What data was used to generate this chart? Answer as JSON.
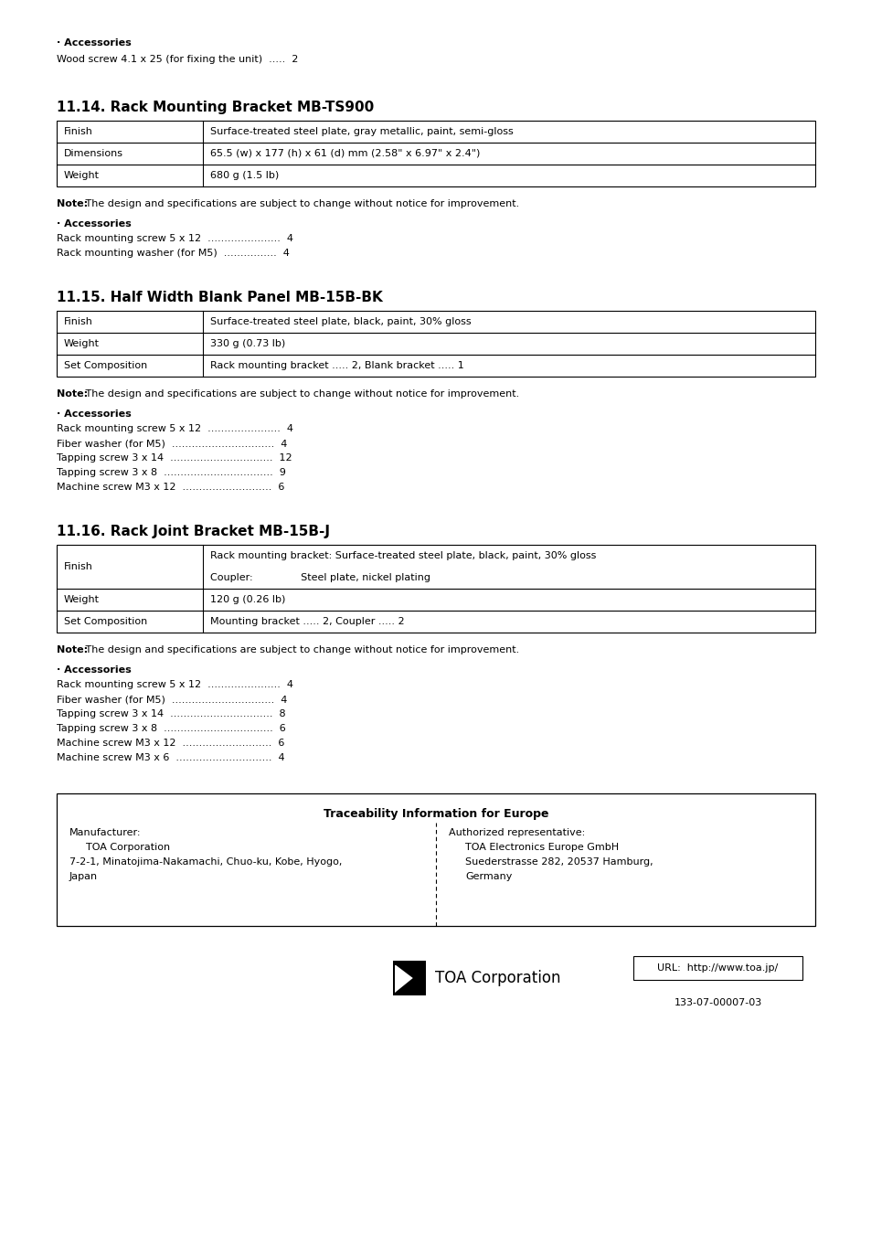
{
  "bg_color": "#ffffff",
  "top_accessories_label": "· Accessories",
  "top_accessories_item": "Wood screw 4.1 x 25 (for fixing the unit)  .....  2",
  "section1_title": "11.14. Rack Mounting Bracket MB-TS900",
  "section1_table": [
    [
      "Finish",
      "Surface-treated steel plate, gray metallic, paint, semi-gloss"
    ],
    [
      "Dimensions",
      "65.5 (w) x 177 (h) x 61 (d) mm (2.58\" x 6.97\" x 2.4\")"
    ],
    [
      "Weight",
      "680 g (1.5 lb)"
    ]
  ],
  "section1_note": "The design and specifications are subject to change without notice for improvement.",
  "section1_accessories_label": "· Accessories",
  "section1_accessories": [
    "Rack mounting screw 5 x 12  ......................  4",
    "Rack mounting washer (for M5)  ................  4"
  ],
  "section2_title": "11.15. Half Width Blank Panel MB-15B-BK",
  "section2_table": [
    [
      "Finish",
      "Surface-treated steel plate, black, paint, 30% gloss"
    ],
    [
      "Weight",
      "330 g (0.73 lb)"
    ],
    [
      "Set Composition",
      "Rack mounting bracket ..... 2, Blank bracket ..... 1"
    ]
  ],
  "section2_note": "The design and specifications are subject to change without notice for improvement.",
  "section2_accessories_label": "· Accessories",
  "section2_accessories": [
    "Rack mounting screw 5 x 12  ......................  4",
    "Fiber washer (for M5)  ...............................  4",
    "Tapping screw 3 x 14  ...............................  12",
    "Tapping screw 3 x 8  .................................  9",
    "Machine screw M3 x 12  ...........................  6"
  ],
  "section3_title": "11.16. Rack Joint Bracket MB-15B-J",
  "section3_table": [
    [
      "Finish",
      "Rack mounting bracket: Surface-treated steel plate, black, paint, 30% gloss\nCoupler:               Steel plate, nickel plating"
    ],
    [
      "Weight",
      "120 g (0.26 lb)"
    ],
    [
      "Set Composition",
      "Mounting bracket ..... 2, Coupler ..... 2"
    ]
  ],
  "section3_note": "The design and specifications are subject to change without notice for improvement.",
  "section3_accessories_label": "· Accessories",
  "section3_accessories": [
    "Rack mounting screw 5 x 12  ......................  4",
    "Fiber washer (for M5)  ...............................  4",
    "Tapping screw 3 x 14  ...............................  8",
    "Tapping screw 3 x 8  .................................  6",
    "Machine screw M3 x 12  ...........................  6",
    "Machine screw M3 x 6  .............................  4"
  ],
  "traceability_title": "Traceability Information for Europe",
  "manufacturer_label": "Manufacturer:",
  "manufacturer_lines": [
    "TOA Corporation",
    "7-2-1, Minatojima-Nakamachi, Chuo-ku, Kobe, Hyogo,",
    "Japan"
  ],
  "authorized_label": "Authorized representative:",
  "authorized_lines": [
    "TOA Electronics Europe GmbH",
    "Suederstrasse 282, 20537 Hamburg,",
    "Germany"
  ],
  "url_text": "URL:  http://www.toa.jp/",
  "model_code": "133-07-00007-03",
  "toa_corporation_text": "TOA Corporation",
  "note_bold": "Note:"
}
